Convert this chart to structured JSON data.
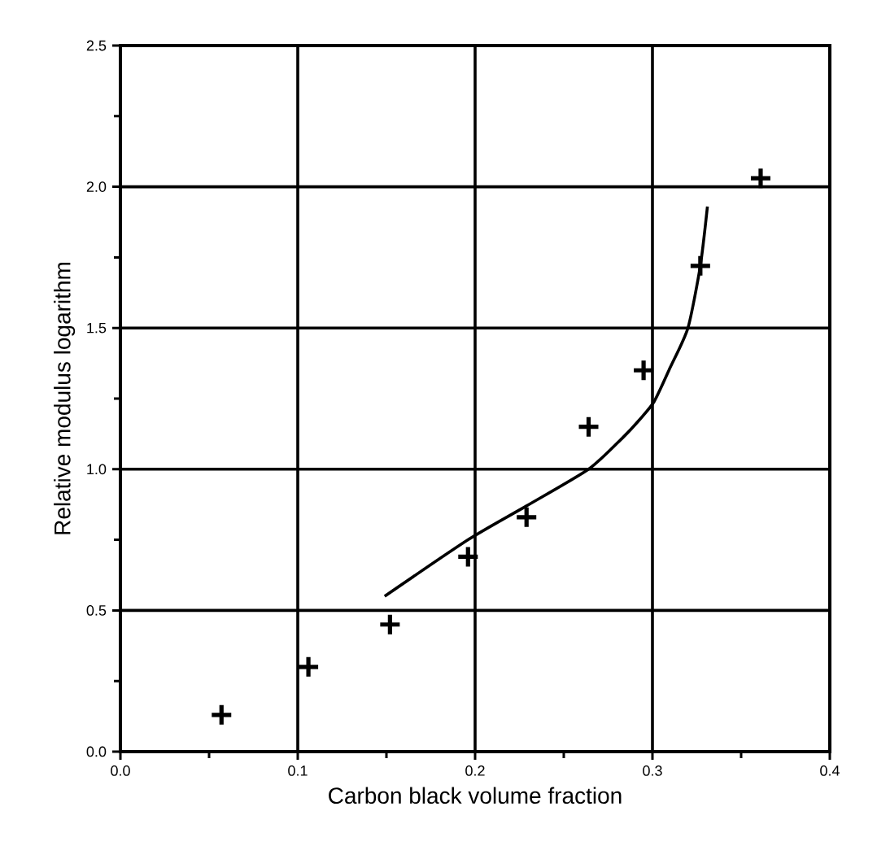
{
  "chart_data": {
    "type": "scatter",
    "xlabel": "Carbon black volume fraction",
    "ylabel": "Relative modulus logarithm",
    "xlim": [
      0,
      0.4
    ],
    "ylim": [
      0,
      2.5
    ],
    "xticks": [
      {
        "value": 0,
        "label": "0.0"
      },
      0.1,
      0.2,
      0.3,
      0.4
    ],
    "yticks": [
      {
        "value": 0,
        "label": "0.0"
      },
      0.5,
      {
        "value": 1,
        "label": "1.0"
      },
      1.5,
      {
        "value": 2,
        "label": "2.0"
      },
      2.5
    ],
    "grid": true,
    "series": [
      {
        "marker": "cross",
        "color": "#000000",
        "x": [
          0.057,
          0.106,
          0.152,
          0.196,
          0.229,
          0.264,
          0.295,
          0.327,
          0.361
        ],
        "values": [
          0.13,
          0.3,
          0.45,
          0.69,
          0.83,
          1.15,
          1.35,
          1.72,
          2.03
        ]
      },
      {
        "type": "line",
        "marker": "none",
        "line_style": "solid",
        "color": "#000000",
        "x": [
          0.149,
          0.196,
          0.229,
          0.264,
          0.283,
          0.292,
          0.301,
          0.31,
          0.32,
          0.327,
          0.331
        ],
        "values": [
          0.55,
          0.75,
          0.87,
          1.0,
          1.11,
          1.17,
          1.24,
          1.36,
          1.5,
          1.72,
          1.93
        ]
      }
    ]
  }
}
